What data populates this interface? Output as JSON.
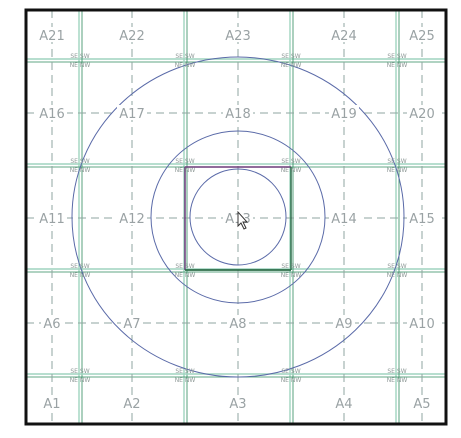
{
  "grid": {
    "rows": [
      [
        "A21",
        "A22",
        "A23",
        "A24",
        "A25"
      ],
      [
        "A16",
        "A17",
        "A18",
        "A19",
        "A20"
      ],
      [
        "A11",
        "A12",
        "A13",
        "A14",
        "A15"
      ],
      [
        "A6",
        "A7",
        "A8",
        "A9",
        "A10"
      ],
      [
        "A1",
        "A2",
        "A3",
        "A4",
        "A5"
      ]
    ]
  },
  "quadrant_labels": {
    "top": "SE SW",
    "bottom": "NE NW"
  },
  "colors": {
    "frame": "#111111",
    "grid_line": "#9fd4bf",
    "grid_line_dark": "#2e8a5e",
    "dashed_line": "#8fa6a0",
    "contour": "#5a6aa8",
    "center_square_left": "#6b3a7a",
    "center_square_bottom": "#2e6e4a"
  }
}
